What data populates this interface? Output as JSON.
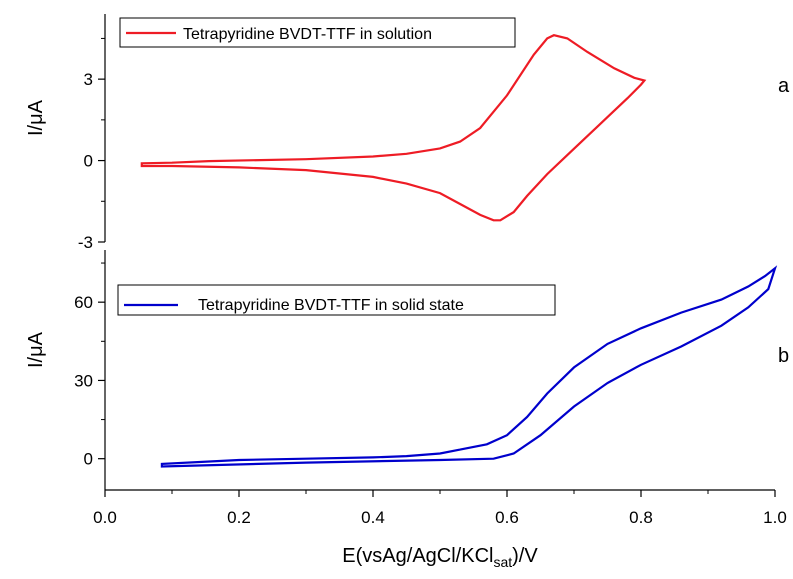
{
  "chart_data": [
    {
      "type": "line",
      "panel_label": "a",
      "ylabel": "I/μA",
      "xlim": [
        0.0,
        1.0
      ],
      "ylim": [
        -3.0,
        5.4
      ],
      "yticks": [
        "-3",
        "0",
        "3"
      ],
      "legend": {
        "position": "top-left"
      },
      "series": [
        {
          "name": "Tetrapyridine BVDT-TTF in solution",
          "color": "#ee1c25",
          "x": [
            0.155,
            0.3,
            0.4,
            0.45,
            0.5,
            0.53,
            0.56,
            0.6,
            0.64,
            0.66,
            0.67,
            0.69,
            0.72,
            0.76,
            0.79,
            0.805,
            0.8,
            0.78,
            0.75,
            0.72,
            0.69,
            0.66,
            0.63,
            0.61,
            0.59,
            0.58,
            0.56,
            0.53,
            0.5,
            0.45,
            0.4,
            0.3,
            0.2,
            0.1,
            0.055,
            0.055,
            0.1,
            0.155
          ],
          "y": [
            -0.02,
            0.05,
            0.15,
            0.25,
            0.45,
            0.7,
            1.2,
            2.4,
            3.9,
            4.5,
            4.62,
            4.5,
            4.0,
            3.4,
            3.05,
            2.95,
            2.8,
            2.3,
            1.6,
            0.9,
            0.2,
            -0.5,
            -1.3,
            -1.9,
            -2.2,
            -2.2,
            -2.0,
            -1.6,
            -1.2,
            -0.85,
            -0.6,
            -0.35,
            -0.25,
            -0.2,
            -0.2,
            -0.1,
            -0.08,
            -0.02
          ]
        }
      ]
    },
    {
      "type": "line",
      "panel_label": "b",
      "xlabel": "E(vsAg/AgCl/KCl",
      "xlabel_sub": "sat",
      "xlabel_end": ")/V",
      "ylabel": "I/μA",
      "xlim": [
        0.0,
        1.0
      ],
      "ylim": [
        -12,
        80
      ],
      "xticks": [
        "0.0",
        "0.2",
        "0.4",
        "0.6",
        "0.8",
        "1.0"
      ],
      "yticks": [
        "0",
        "30",
        "60"
      ],
      "legend": {
        "position": "top-left"
      },
      "series": [
        {
          "name": "Tetrapyridine BVDT-TTF in solid state",
          "color": "#0000cc",
          "x": [
            0.53,
            0.5,
            0.45,
            0.4,
            0.3,
            0.2,
            0.085,
            0.085,
            0.3,
            0.5,
            0.58,
            0.61,
            0.65,
            0.7,
            0.75,
            0.8,
            0.86,
            0.92,
            0.96,
            0.99,
            1.0,
            0.985,
            0.96,
            0.92,
            0.86,
            0.8,
            0.75,
            0.7,
            0.66,
            0.63,
            0.6,
            0.57,
            0.53
          ],
          "y": [
            3.5,
            2.0,
            1.0,
            0.5,
            0.0,
            -0.5,
            -2.0,
            -3.0,
            -1.5,
            -0.5,
            0.0,
            2.0,
            9.0,
            20.0,
            29.0,
            36.0,
            43.0,
            51.0,
            58.0,
            65.0,
            73.0,
            70.0,
            66.0,
            61.0,
            56.0,
            50.0,
            44.0,
            35.0,
            25.0,
            16.0,
            9.0,
            5.5,
            3.5
          ]
        }
      ]
    }
  ]
}
